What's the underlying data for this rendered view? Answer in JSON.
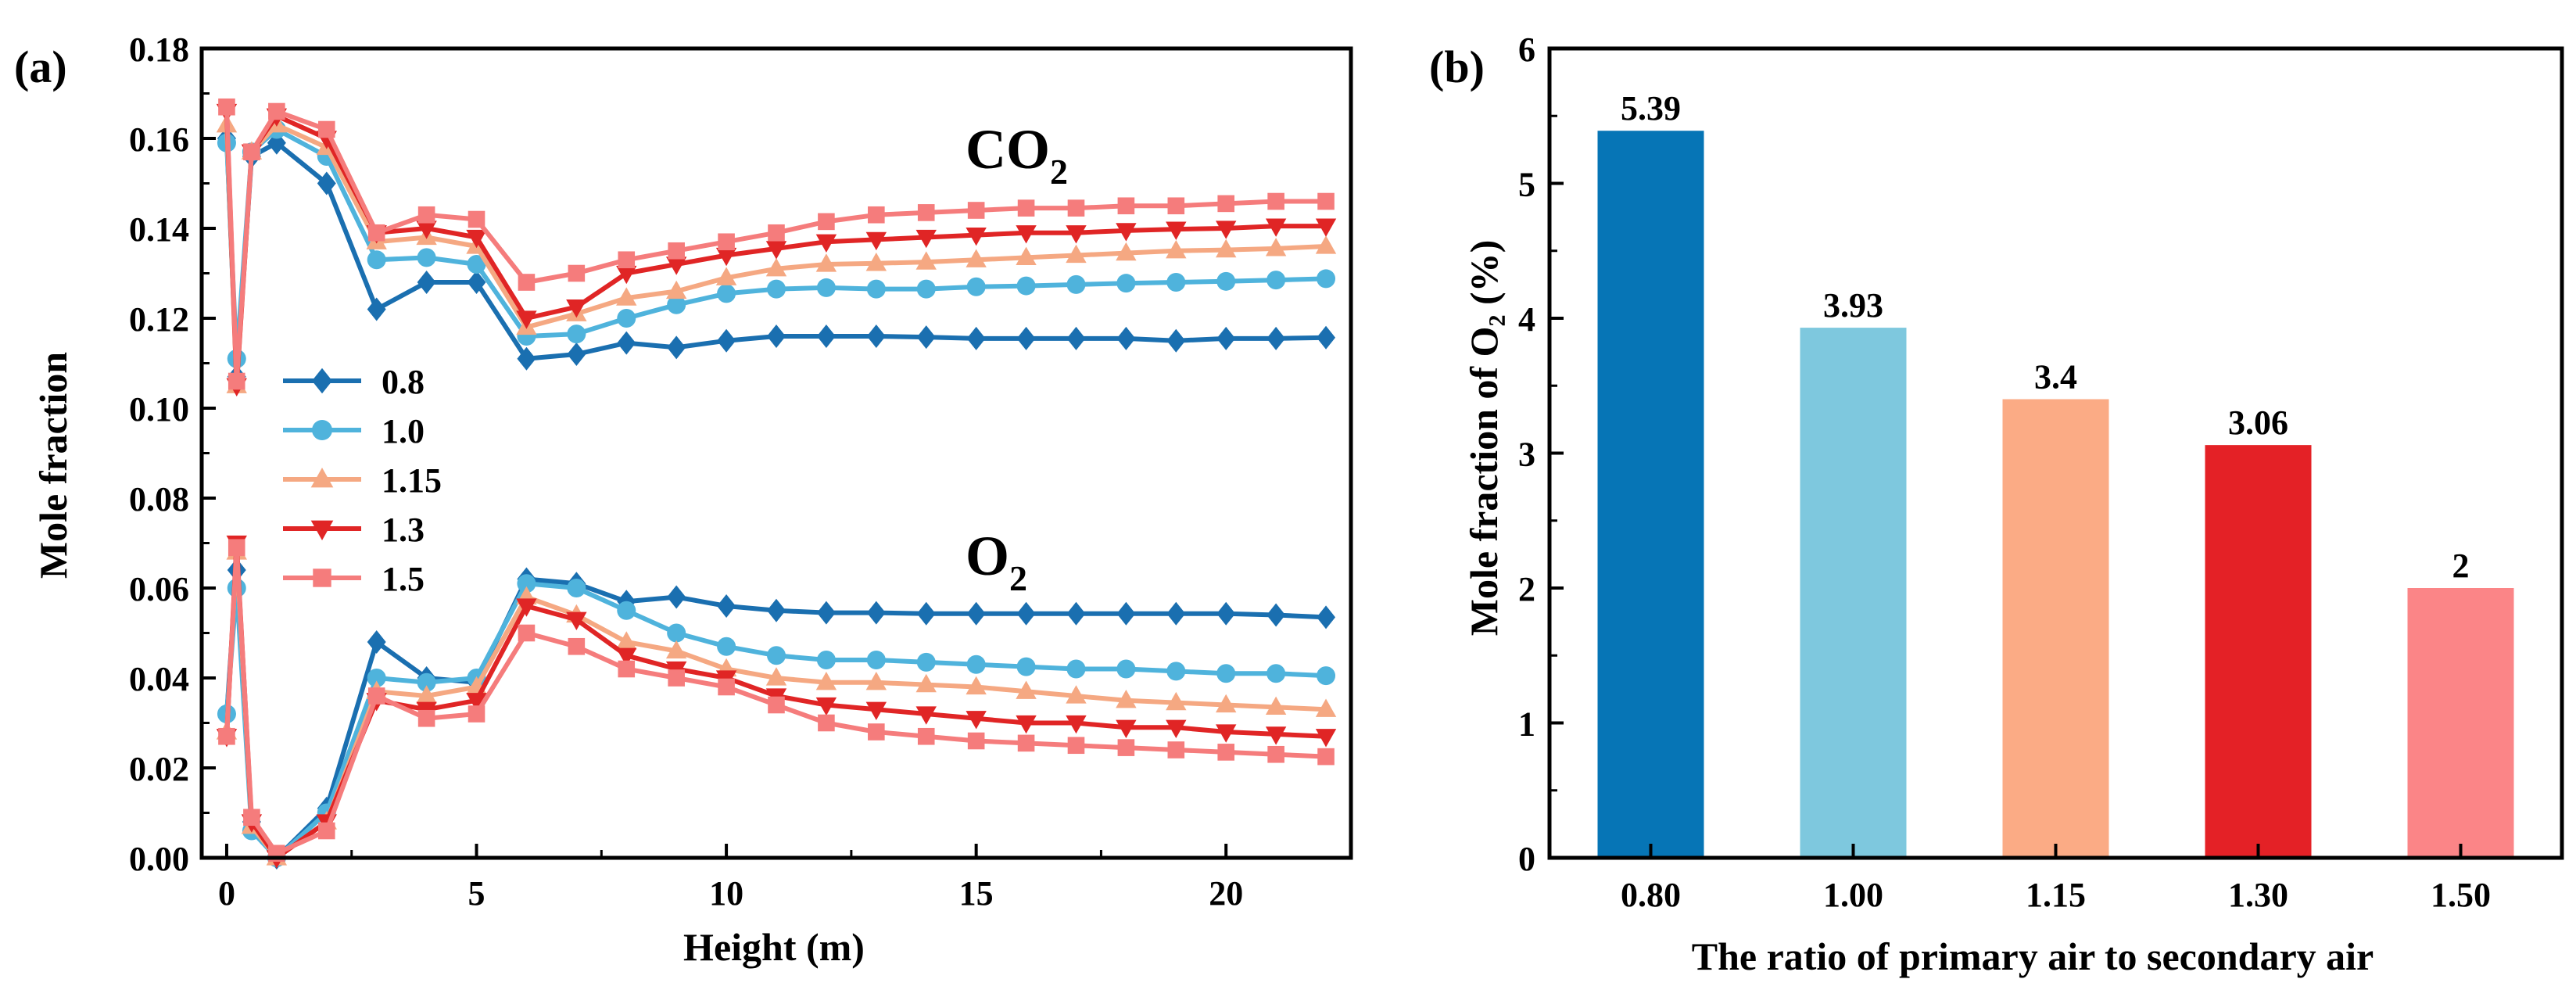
{
  "chart_data": [
    {
      "panel_label": "(a)",
      "type": "line",
      "xlabel": "Height (m)",
      "ylabel": "Mole fraction",
      "xlim": [
        -0.5,
        22.5
      ],
      "ylim": [
        0.0,
        0.18
      ],
      "xticks": [
        0,
        5,
        10,
        15,
        20
      ],
      "xtick_labels": [
        "0",
        "5",
        "10",
        "15",
        "20"
      ],
      "yticks": [
        0.0,
        0.02,
        0.04,
        0.06,
        0.08,
        0.1,
        0.12,
        0.14,
        0.16,
        0.18
      ],
      "ytick_labels": [
        "0.00",
        "0.02",
        "0.04",
        "0.06",
        "0.08",
        "0.10",
        "0.12",
        "0.14",
        "0.16",
        "0.18"
      ],
      "grid": false,
      "legend_position": "middle-left",
      "annotations": [
        {
          "text": "CO",
          "subscript": "2"
        },
        {
          "text": "O",
          "subscript": "2"
        }
      ],
      "x": [
        0,
        0.2,
        0.5,
        1,
        2,
        3,
        4,
        5,
        6,
        7,
        8,
        9,
        10,
        11,
        12,
        13,
        14,
        15,
        16,
        17,
        18,
        19,
        20,
        21,
        22
      ],
      "series": [
        {
          "name": "0.8",
          "color": "#1a6fb0",
          "marker": "diamond",
          "group": "CO2",
          "values": [
            0.16,
            0.107,
            0.156,
            0.159,
            0.15,
            0.122,
            0.128,
            0.128,
            0.111,
            0.112,
            0.1145,
            0.1135,
            0.115,
            0.116,
            0.116,
            0.116,
            0.1158,
            0.1155,
            0.1155,
            0.1155,
            0.1155,
            0.115,
            0.1155,
            0.1155,
            0.1157
          ]
        },
        {
          "name": "1.0",
          "color": "#4fb3dc",
          "marker": "circle",
          "group": "CO2",
          "values": [
            0.159,
            0.111,
            0.157,
            0.162,
            0.156,
            0.133,
            0.1335,
            0.132,
            0.116,
            0.1165,
            0.12,
            0.123,
            0.1255,
            0.1265,
            0.1268,
            0.1265,
            0.1265,
            0.127,
            0.1272,
            0.1275,
            0.1278,
            0.128,
            0.1282,
            0.1285,
            0.1288
          ]
        },
        {
          "name": "1.15",
          "color": "#f5a882",
          "marker": "triangle-up",
          "group": "CO2",
          "values": [
            0.163,
            0.105,
            0.157,
            0.163,
            0.158,
            0.137,
            0.138,
            0.136,
            0.118,
            0.121,
            0.1245,
            0.126,
            0.129,
            0.131,
            0.132,
            0.1322,
            0.1325,
            0.133,
            0.1335,
            0.134,
            0.1345,
            0.135,
            0.1352,
            0.1355,
            0.136
          ]
        },
        {
          "name": "1.3",
          "color": "#e02525",
          "marker": "triangle-down",
          "group": "CO2",
          "values": [
            0.166,
            0.105,
            0.157,
            0.165,
            0.16,
            0.139,
            0.14,
            0.138,
            0.12,
            0.1225,
            0.13,
            0.132,
            0.134,
            0.1355,
            0.137,
            0.1375,
            0.138,
            0.1385,
            0.139,
            0.139,
            0.1395,
            0.1398,
            0.14,
            0.1405,
            0.1405
          ]
        },
        {
          "name": "1.5",
          "color": "#f57c7c",
          "marker": "square",
          "group": "CO2",
          "values": [
            0.167,
            0.106,
            0.157,
            0.166,
            0.162,
            0.139,
            0.143,
            0.142,
            0.128,
            0.13,
            0.133,
            0.135,
            0.137,
            0.139,
            0.1415,
            0.143,
            0.1435,
            0.144,
            0.1445,
            0.1445,
            0.145,
            0.145,
            0.1455,
            0.146,
            0.146
          ]
        },
        {
          "name": "0.8",
          "color": "#1a6fb0",
          "marker": "diamond",
          "group": "O2",
          "values": [
            0.032,
            0.064,
            0.008,
            0.0,
            0.011,
            0.048,
            0.04,
            0.039,
            0.062,
            0.061,
            0.057,
            0.058,
            0.056,
            0.055,
            0.0545,
            0.0545,
            0.0543,
            0.0543,
            0.0543,
            0.0543,
            0.0543,
            0.0543,
            0.0543,
            0.054,
            0.0535
          ]
        },
        {
          "name": "1.0",
          "color": "#4fb3dc",
          "marker": "circle",
          "group": "O2",
          "values": [
            0.032,
            0.06,
            0.006,
            0.0,
            0.01,
            0.04,
            0.039,
            0.04,
            0.061,
            0.06,
            0.055,
            0.05,
            0.047,
            0.045,
            0.044,
            0.044,
            0.0435,
            0.043,
            0.0425,
            0.042,
            0.042,
            0.0415,
            0.041,
            0.041,
            0.0405
          ]
        },
        {
          "name": "1.15",
          "color": "#f5a882",
          "marker": "triangle-up",
          "group": "O2",
          "values": [
            0.028,
            0.068,
            0.007,
            0.0,
            0.008,
            0.037,
            0.036,
            0.038,
            0.058,
            0.054,
            0.048,
            0.046,
            0.042,
            0.04,
            0.039,
            0.039,
            0.0385,
            0.038,
            0.037,
            0.036,
            0.035,
            0.0345,
            0.034,
            0.0335,
            0.033
          ]
        },
        {
          "name": "1.3",
          "color": "#e02525",
          "marker": "triangle-down",
          "group": "O2",
          "values": [
            0.027,
            0.07,
            0.008,
            0.0,
            0.008,
            0.035,
            0.033,
            0.035,
            0.056,
            0.053,
            0.045,
            0.042,
            0.04,
            0.036,
            0.034,
            0.033,
            0.032,
            0.031,
            0.03,
            0.03,
            0.029,
            0.029,
            0.028,
            0.0275,
            0.027
          ]
        },
        {
          "name": "1.5",
          "color": "#f57c7c",
          "marker": "square",
          "group": "O2",
          "values": [
            0.027,
            0.069,
            0.009,
            0.001,
            0.006,
            0.036,
            0.031,
            0.032,
            0.05,
            0.047,
            0.042,
            0.04,
            0.038,
            0.034,
            0.03,
            0.028,
            0.027,
            0.026,
            0.0255,
            0.025,
            0.0245,
            0.024,
            0.0235,
            0.023,
            0.0225
          ]
        }
      ]
    },
    {
      "panel_label": "(b)",
      "type": "bar",
      "xlabel": "The ratio of primary air to secondary air",
      "ylabel": "Mole fraction of O₂ (%)",
      "ylim": [
        0,
        6
      ],
      "yticks": [
        0,
        1,
        2,
        3,
        4,
        5,
        6
      ],
      "ytick_labels": [
        "0",
        "1",
        "2",
        "3",
        "4",
        "5",
        "6"
      ],
      "grid": false,
      "categories": [
        "0.80",
        "1.00",
        "1.15",
        "1.30",
        "1.50"
      ],
      "values": [
        5.39,
        3.93,
        3.4,
        3.06,
        2
      ],
      "data_labels": [
        "5.39",
        "3.93",
        "3.4",
        "3.06",
        "2"
      ],
      "colors": [
        "#0675b6",
        "#7ec8de",
        "#fbab85",
        "#e42126",
        "#fb8587"
      ]
    }
  ]
}
